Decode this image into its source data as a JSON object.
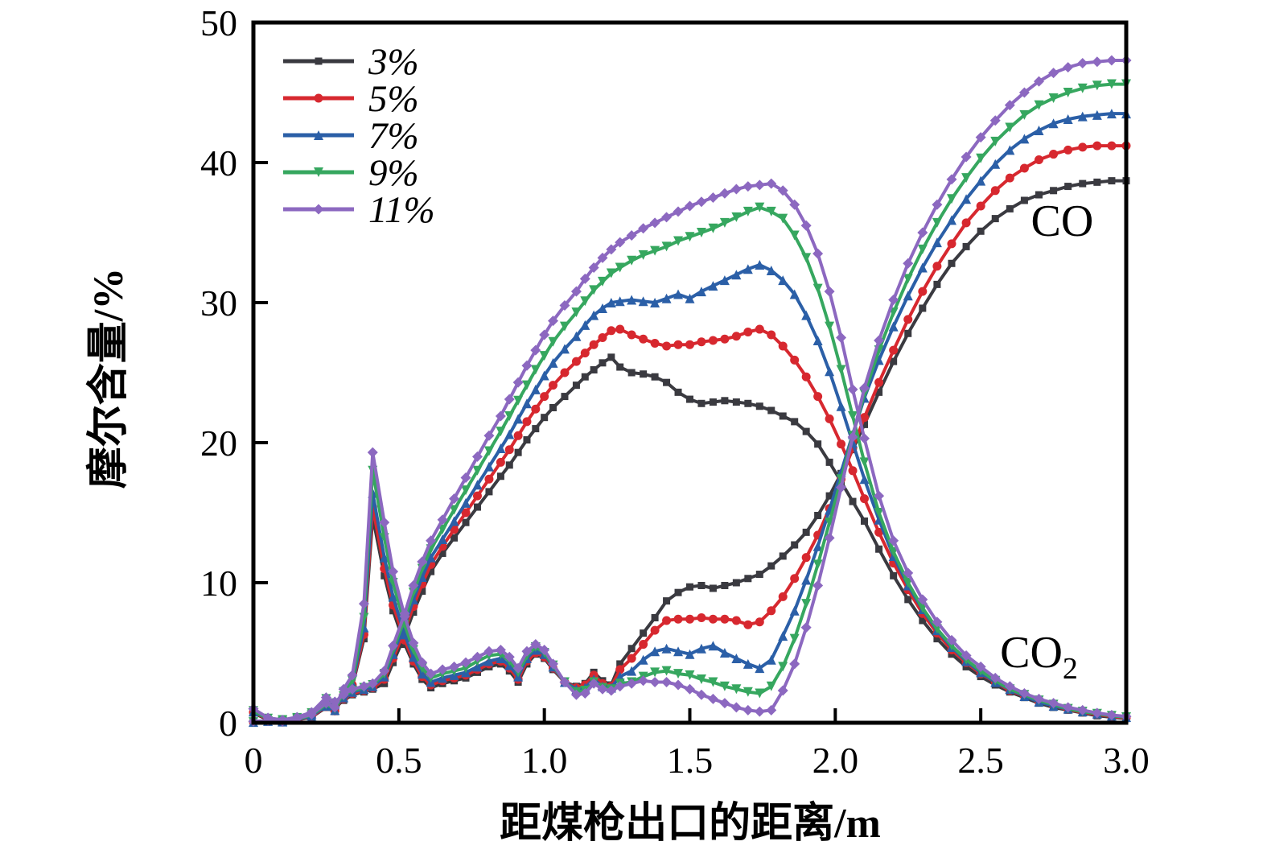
{
  "chart_data": {
    "type": "line",
    "title": "",
    "xlabel": "距煤枪出口的距离/m",
    "ylabel": "摩尔含量/%",
    "xlim": [
      0,
      3.0
    ],
    "ylim": [
      0,
      50
    ],
    "xticks": {
      "values": [
        0,
        0.5,
        1.0,
        1.5,
        2.0,
        2.5,
        3.0
      ],
      "labels": [
        "0",
        "0.5",
        "1.0",
        "1.5",
        "2.0",
        "2.5",
        "3.0"
      ]
    },
    "yticks": {
      "values": [
        0,
        10,
        20,
        30,
        40,
        50
      ],
      "labels": [
        "0",
        "10",
        "20",
        "30",
        "40",
        "50"
      ]
    },
    "grid": false,
    "legend_position": "upper-left-inside",
    "legend": [
      {
        "label": "3%",
        "color": "#3a3a40",
        "marker": "square"
      },
      {
        "label": "5%",
        "color": "#d7282f",
        "marker": "circle"
      },
      {
        "label": "7%",
        "color": "#2b5fa7",
        "marker": "triangle-up"
      },
      {
        "label": "9%",
        "color": "#36a75f",
        "marker": "triangle-down"
      },
      {
        "label": "11%",
        "color": "#8c68c0",
        "marker": "diamond"
      }
    ],
    "annotations": [
      {
        "label": "CO",
        "subscript": "",
        "x": 2.78,
        "y": 35.8
      },
      {
        "label": "CO",
        "subscript": "2",
        "x": 2.7,
        "y": 5.0
      }
    ],
    "x": [
      0,
      0.05,
      0.1,
      0.15,
      0.2,
      0.25,
      0.28,
      0.31,
      0.34,
      0.38,
      0.41,
      0.45,
      0.48,
      0.52,
      0.55,
      0.58,
      0.61,
      0.65,
      0.69,
      0.73,
      0.77,
      0.81,
      0.85,
      0.88,
      0.91,
      0.94,
      0.97,
      1.0,
      1.03,
      1.07,
      1.11,
      1.14,
      1.17,
      1.2,
      1.23,
      1.26,
      1.3,
      1.34,
      1.38,
      1.42,
      1.46,
      1.5,
      1.54,
      1.58,
      1.62,
      1.66,
      1.7,
      1.74,
      1.78,
      1.82,
      1.86,
      1.9,
      1.94,
      1.98,
      2.02,
      2.06,
      2.1,
      2.15,
      2.2,
      2.25,
      2.3,
      2.35,
      2.4,
      2.45,
      2.5,
      2.55,
      2.6,
      2.65,
      2.7,
      2.75,
      2.8,
      2.85,
      2.9,
      2.95,
      3.0
    ],
    "series": [
      {
        "name": "CO2 3%",
        "gas": "CO2",
        "oxygen": "3%",
        "color": "#3a3a40",
        "marker": "square",
        "values": [
          0.7,
          0.2,
          0.1,
          0.25,
          0.5,
          1.4,
          1.1,
          1.6,
          2.0,
          2.2,
          2.4,
          2.8,
          4.3,
          6.2,
          7.9,
          9.4,
          10.8,
          12.1,
          13.2,
          14.3,
          15.4,
          16.5,
          17.6,
          18.4,
          19.3,
          20.2,
          21.0,
          21.8,
          22.5,
          23.3,
          24.1,
          24.7,
          25.2,
          25.7,
          26.1,
          25.4,
          25.0,
          24.9,
          24.7,
          24.3,
          23.6,
          23.1,
          22.8,
          22.9,
          23.0,
          22.9,
          22.8,
          22.6,
          22.3,
          21.9,
          21.5,
          20.8,
          19.9,
          18.6,
          17.2,
          15.8,
          14.4,
          12.4,
          10.5,
          8.8,
          7.3,
          6.0,
          4.9,
          4.0,
          3.3,
          2.7,
          2.2,
          1.8,
          1.4,
          1.1,
          0.9,
          0.7,
          0.5,
          0.4,
          0.3
        ]
      },
      {
        "name": "CO2 5%",
        "gas": "CO2",
        "oxygen": "5%",
        "color": "#d7282f",
        "marker": "circle",
        "values": [
          0.75,
          0.25,
          0.15,
          0.3,
          0.6,
          1.5,
          1.2,
          1.7,
          2.1,
          2.3,
          2.5,
          3.1,
          4.6,
          6.6,
          8.3,
          9.9,
          11.3,
          12.6,
          13.8,
          15.0,
          16.2,
          17.4,
          18.6,
          19.5,
          20.5,
          21.5,
          22.4,
          23.3,
          24.1,
          25.0,
          25.8,
          26.4,
          27.0,
          27.5,
          28.0,
          28.1,
          27.7,
          27.4,
          27.1,
          26.9,
          27.0,
          27.0,
          27.2,
          27.3,
          27.4,
          27.6,
          27.9,
          28.1,
          27.7,
          26.9,
          25.9,
          24.7,
          23.3,
          21.7,
          19.9,
          18.0,
          16.0,
          13.6,
          11.4,
          9.5,
          7.8,
          6.4,
          5.2,
          4.3,
          3.5,
          2.9,
          2.3,
          1.9,
          1.5,
          1.2,
          0.95,
          0.75,
          0.6,
          0.45,
          0.35
        ]
      },
      {
        "name": "CO2 7%",
        "gas": "CO2",
        "oxygen": "7%",
        "color": "#2b5fa7",
        "marker": "triangle-up",
        "values": [
          0.8,
          0.3,
          0.15,
          0.3,
          0.65,
          1.6,
          1.3,
          1.8,
          2.2,
          2.4,
          2.6,
          3.3,
          4.9,
          7.0,
          8.8,
          10.4,
          11.8,
          13.1,
          14.4,
          15.7,
          17.0,
          18.3,
          19.6,
          20.6,
          21.7,
          22.8,
          23.8,
          24.8,
          25.7,
          26.7,
          27.6,
          28.4,
          29.1,
          29.6,
          30.0,
          30.1,
          30.2,
          30.1,
          30.0,
          30.3,
          30.6,
          30.3,
          30.8,
          31.2,
          31.6,
          32.0,
          32.4,
          32.7,
          32.3,
          31.6,
          30.6,
          29.1,
          27.3,
          25.1,
          22.6,
          20.0,
          17.4,
          14.5,
          11.9,
          9.8,
          8.1,
          6.6,
          5.4,
          4.4,
          3.6,
          2.9,
          2.4,
          1.9,
          1.5,
          1.2,
          1.0,
          0.8,
          0.65,
          0.5,
          0.4
        ]
      },
      {
        "name": "CO2 9%",
        "gas": "CO2",
        "oxygen": "9%",
        "color": "#36a75f",
        "marker": "triangle-down",
        "values": [
          0.85,
          0.3,
          0.2,
          0.35,
          0.7,
          1.7,
          1.4,
          1.9,
          2.3,
          2.5,
          2.7,
          3.5,
          5.2,
          7.4,
          9.3,
          11.0,
          12.4,
          13.8,
          15.2,
          16.6,
          18.0,
          19.4,
          20.8,
          21.9,
          23.0,
          24.1,
          25.2,
          26.2,
          27.2,
          28.3,
          29.3,
          30.1,
          30.9,
          31.5,
          32.1,
          32.5,
          33.0,
          33.4,
          33.7,
          34.0,
          34.4,
          34.7,
          35.0,
          35.3,
          35.7,
          36.1,
          36.5,
          36.8,
          36.5,
          36.0,
          34.8,
          33.2,
          31.0,
          28.3,
          25.2,
          21.9,
          18.6,
          15.0,
          12.2,
          10.0,
          8.2,
          6.7,
          5.5,
          4.5,
          3.7,
          3.0,
          2.4,
          2.0,
          1.6,
          1.3,
          1.0,
          0.8,
          0.65,
          0.5,
          0.4
        ]
      },
      {
        "name": "CO2 11%",
        "gas": "CO2",
        "oxygen": "11%",
        "color": "#8c68c0",
        "marker": "diamond",
        "values": [
          1.0,
          0.35,
          0.2,
          0.4,
          0.75,
          1.8,
          1.5,
          2.0,
          2.4,
          2.6,
          2.8,
          3.7,
          5.5,
          7.8,
          9.8,
          11.5,
          13.0,
          14.5,
          16.0,
          17.5,
          19.0,
          20.5,
          21.9,
          23.1,
          24.3,
          25.5,
          26.6,
          27.7,
          28.7,
          29.8,
          30.8,
          31.7,
          32.5,
          33.2,
          33.8,
          34.3,
          34.8,
          35.3,
          35.7,
          36.1,
          36.5,
          36.9,
          37.2,
          37.5,
          37.8,
          38.1,
          38.3,
          38.4,
          38.5,
          38.0,
          37.0,
          35.5,
          33.5,
          30.8,
          27.5,
          23.8,
          20.3,
          16.2,
          13.0,
          10.7,
          8.8,
          7.2,
          5.9,
          4.8,
          4.0,
          3.2,
          2.6,
          2.1,
          1.7,
          1.4,
          1.1,
          0.9,
          0.7,
          0.55,
          0.45
        ]
      },
      {
        "name": "CO 3%",
        "gas": "CO",
        "oxygen": "3%",
        "color": "#3a3a40",
        "marker": "square",
        "values": [
          0.05,
          0.1,
          0.05,
          0.2,
          0.4,
          1.1,
          0.8,
          1.9,
          2.6,
          6.0,
          14.7,
          10.5,
          8.0,
          5.6,
          4.2,
          3.1,
          2.5,
          2.8,
          3.0,
          3.2,
          3.6,
          4.0,
          4.2,
          3.7,
          2.9,
          4.2,
          4.9,
          4.6,
          3.8,
          2.9,
          2.6,
          2.8,
          3.6,
          3.0,
          2.7,
          4.2,
          5.3,
          6.4,
          7.5,
          8.7,
          9.3,
          9.7,
          9.8,
          9.6,
          9.8,
          10.0,
          10.3,
          10.6,
          11.2,
          11.9,
          12.7,
          13.6,
          14.8,
          16.2,
          17.8,
          19.5,
          21.3,
          23.6,
          25.8,
          27.8,
          29.6,
          31.3,
          32.8,
          34.0,
          35.1,
          36.0,
          36.7,
          37.3,
          37.7,
          38.0,
          38.3,
          38.5,
          38.6,
          38.7,
          38.7
        ]
      },
      {
        "name": "CO 5%",
        "gas": "CO",
        "oxygen": "5%",
        "color": "#d7282f",
        "marker": "circle",
        "values": [
          0.05,
          0.1,
          0.05,
          0.2,
          0.45,
          1.15,
          0.85,
          2.0,
          2.7,
          6.3,
          15.4,
          11.0,
          8.4,
          5.9,
          4.4,
          3.3,
          2.7,
          3.0,
          3.2,
          3.4,
          3.8,
          4.2,
          4.4,
          3.9,
          3.1,
          4.4,
          5.0,
          4.7,
          3.9,
          2.9,
          2.5,
          2.7,
          3.4,
          2.8,
          2.6,
          3.8,
          4.6,
          5.6,
          6.6,
          7.3,
          7.4,
          7.4,
          7.5,
          7.4,
          7.4,
          7.3,
          7.0,
          7.2,
          8.0,
          9.0,
          10.3,
          11.8,
          13.4,
          15.3,
          17.4,
          19.6,
          21.8,
          24.3,
          26.6,
          28.8,
          30.8,
          32.6,
          34.2,
          35.7,
          36.9,
          38.0,
          38.9,
          39.6,
          40.2,
          40.6,
          40.9,
          41.1,
          41.2,
          41.2,
          41.2
        ]
      },
      {
        "name": "CO 7%",
        "gas": "CO",
        "oxygen": "7%",
        "color": "#2b5fa7",
        "marker": "triangle-up",
        "values": [
          0.05,
          0.12,
          0.08,
          0.22,
          0.5,
          1.2,
          0.9,
          2.1,
          2.8,
          6.8,
          16.4,
          11.8,
          9.0,
          6.3,
          4.7,
          3.5,
          2.9,
          3.2,
          3.4,
          3.6,
          4.0,
          4.4,
          4.6,
          4.1,
          3.3,
          4.6,
          5.2,
          4.9,
          4.0,
          2.9,
          2.4,
          2.5,
          3.1,
          2.6,
          2.5,
          3.3,
          3.7,
          4.5,
          5.1,
          5.3,
          5.1,
          4.9,
          5.3,
          5.5,
          5.0,
          4.6,
          4.2,
          3.9,
          4.5,
          6.2,
          8.0,
          10.2,
          12.6,
          15.2,
          17.9,
          20.6,
          23.2,
          25.9,
          28.3,
          30.5,
          32.5,
          34.3,
          35.9,
          37.4,
          38.7,
          39.9,
          40.9,
          41.7,
          42.3,
          42.8,
          43.1,
          43.3,
          43.4,
          43.5,
          43.5
        ]
      },
      {
        "name": "CO 9%",
        "gas": "CO",
        "oxygen": "9%",
        "color": "#36a75f",
        "marker": "triangle-down",
        "values": [
          0.05,
          0.12,
          0.08,
          0.25,
          0.55,
          1.3,
          1.0,
          2.2,
          3.0,
          7.5,
          18.0,
          13.2,
          10.0,
          7.0,
          5.2,
          3.9,
          3.2,
          3.5,
          3.7,
          3.9,
          4.4,
          4.8,
          4.9,
          4.4,
          3.6,
          4.8,
          5.4,
          5.0,
          4.1,
          2.9,
          2.2,
          2.3,
          2.9,
          2.5,
          2.4,
          2.8,
          2.9,
          3.3,
          3.6,
          3.7,
          3.5,
          3.4,
          3.1,
          2.9,
          2.6,
          2.4,
          2.2,
          2.1,
          2.6,
          4.0,
          6.0,
          8.5,
          11.3,
          14.3,
          17.4,
          20.5,
          23.5,
          26.6,
          29.3,
          31.7,
          33.8,
          35.7,
          37.4,
          38.9,
          40.3,
          41.5,
          42.5,
          43.4,
          44.1,
          44.6,
          45.0,
          45.3,
          45.5,
          45.6,
          45.6
        ]
      },
      {
        "name": "CO 11%",
        "gas": "CO",
        "oxygen": "11%",
        "color": "#8c68c0",
        "marker": "diamond",
        "values": [
          0.1,
          0.15,
          0.1,
          0.3,
          0.6,
          1.4,
          1.1,
          2.4,
          3.4,
          8.5,
          19.3,
          14.3,
          10.8,
          7.6,
          5.7,
          4.3,
          3.5,
          3.8,
          4.0,
          4.3,
          4.7,
          5.1,
          5.2,
          4.7,
          3.9,
          5.1,
          5.6,
          5.2,
          4.2,
          2.9,
          2.0,
          2.1,
          2.8,
          2.4,
          2.3,
          2.6,
          2.8,
          3.0,
          2.9,
          2.9,
          2.7,
          2.4,
          2.0,
          1.7,
          1.4,
          1.1,
          0.9,
          0.8,
          0.9,
          2.3,
          4.2,
          6.8,
          9.8,
          13.2,
          16.8,
          20.4,
          23.9,
          27.3,
          30.2,
          32.8,
          35.0,
          37.0,
          38.8,
          40.4,
          41.8,
          43.0,
          44.1,
          45.0,
          45.8,
          46.4,
          46.8,
          47.1,
          47.2,
          47.3,
          47.3
        ]
      }
    ]
  }
}
